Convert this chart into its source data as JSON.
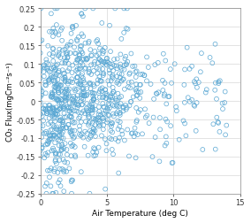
{
  "title": "",
  "xlabel": "Air Temperature (deg C)",
  "ylabel": "CO₂ Flux(mgCm⁻²s⁻¹)",
  "xlim": [
    0,
    15
  ],
  "ylim": [
    -0.25,
    0.25
  ],
  "xticks": [
    0,
    5,
    10,
    15
  ],
  "ytick_vals": [
    -0.25,
    -0.2,
    -0.15,
    -0.1,
    -0.05,
    0,
    0.05,
    0.1,
    0.15,
    0.2,
    0.25
  ],
  "ytick_labels": [
    "-0.25",
    "-0.2",
    "-0.15",
    "-0.1",
    "-0.05",
    "0",
    "0.05",
    "0.1",
    "0.15",
    "0.2",
    "0.25"
  ],
  "marker_color_edge": "#5BA8D4",
  "marker_color_face": "none",
  "marker_size": 3.5,
  "marker_linewidth": 0.5,
  "n_points": 900,
  "seed": 7,
  "background_color": "#ffffff",
  "plot_bg_color": "#ffffff",
  "grid_color": "#d8d8d8",
  "grid_linewidth": 0.5,
  "xlabel_fontsize": 6.5,
  "ylabel_fontsize": 6.0,
  "tick_fontsize": 6.0,
  "spine_color": "#888888"
}
